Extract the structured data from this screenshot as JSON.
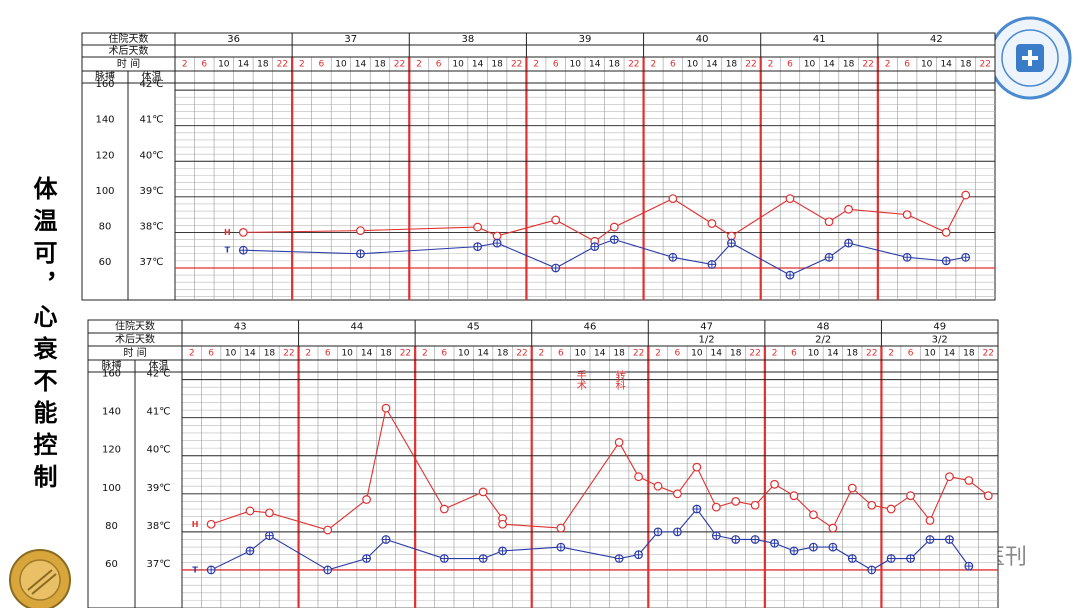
{
  "side_text": "体温可，心衰不能控制",
  "watermark": "PBI医刊",
  "chart_data": [
    {
      "type": "line",
      "header": {
        "hospital_day_label": "住院天数",
        "postop_day_label": "术后天数",
        "time_label": "时    间",
        "pulse_label": "脉搏",
        "temp_label": "体温"
      },
      "days": [
        36,
        37,
        38,
        39,
        40,
        41,
        42
      ],
      "postop_days": [
        null,
        null,
        null,
        null,
        null,
        null,
        null
      ],
      "times": [
        2,
        6,
        10,
        14,
        18,
        22
      ],
      "ylim": [
        42,
        164
      ],
      "yticks": [
        60,
        80,
        100,
        120,
        140,
        160
      ],
      "y2lim": [
        36.1,
        42.2
      ],
      "y2ticks": [
        {
          "value": 37,
          "label": "37℃"
        },
        {
          "value": 38,
          "label": "38℃"
        },
        {
          "value": 39,
          "label": "39℃"
        },
        {
          "value": 40,
          "label": "40℃"
        },
        {
          "value": 41,
          "label": "41℃"
        },
        {
          "value": 42,
          "label": "42℃"
        }
      ],
      "grid": true,
      "series": [
        {
          "name": "H",
          "color": "#e03030",
          "day": [
            36,
            37,
            38,
            38,
            39,
            39,
            39,
            40,
            40,
            40,
            41,
            41,
            41,
            42,
            42,
            42
          ],
          "time": [
            14,
            14,
            14,
            18,
            6,
            14,
            18,
            6,
            14,
            18,
            6,
            14,
            18,
            6,
            14,
            18
          ],
          "values": [
            80,
            81,
            83,
            78,
            87,
            75,
            83,
            99,
            85,
            78,
            99,
            86,
            93,
            90,
            80,
            101
          ]
        },
        {
          "name": "T",
          "color": "#2a3aa8",
          "axis": "y2",
          "day": [
            36,
            37,
            38,
            38,
            39,
            39,
            39,
            40,
            40,
            40,
            41,
            41,
            41,
            42,
            42,
            42
          ],
          "time": [
            14,
            14,
            14,
            18,
            6,
            14,
            18,
            6,
            14,
            18,
            6,
            14,
            18,
            6,
            14,
            18
          ],
          "values": [
            37.5,
            37.4,
            37.6,
            37.7,
            37.0,
            37.6,
            37.8,
            37.3,
            37.1,
            37.7,
            36.8,
            37.3,
            37.7,
            37.3,
            37.2,
            37.3
          ]
        }
      ]
    },
    {
      "type": "line",
      "header": {
        "hospital_day_label": "住院天数",
        "postop_day_label": "术后天数",
        "time_label": "时    间",
        "pulse_label": "脉搏",
        "temp_label": "体温"
      },
      "days": [
        43,
        44,
        45,
        46,
        47,
        48,
        49
      ],
      "postop_days": [
        null,
        null,
        null,
        null,
        "1/2",
        "2/2",
        "3/2"
      ],
      "times": [
        2,
        6,
        10,
        14,
        18,
        22
      ],
      "ylim": [
        40,
        164
      ],
      "yticks": [
        60,
        80,
        100,
        120,
        140,
        160
      ],
      "y2lim": [
        36.0,
        42.2
      ],
      "y2ticks": [
        {
          "value": 37,
          "label": "37℃"
        },
        {
          "value": 38,
          "label": "38℃"
        },
        {
          "value": 39,
          "label": "39℃"
        },
        {
          "value": 40,
          "label": "40℃"
        },
        {
          "value": 41,
          "label": "41℃"
        },
        {
          "value": 42,
          "label": "42℃"
        }
      ],
      "grid": true,
      "annotations": [
        "手术",
        "转科"
      ],
      "series": [
        {
          "name": "H",
          "color": "#e03030",
          "day": [
            43,
            43,
            43,
            44,
            44,
            44,
            45,
            45,
            45,
            45,
            46,
            46,
            46,
            47,
            47,
            47,
            47,
            47,
            47,
            48,
            48,
            48,
            48,
            48,
            48,
            49,
            49,
            49,
            49,
            49,
            49
          ],
          "time": [
            6,
            14,
            18,
            6,
            14,
            18,
            6,
            14,
            18,
            18,
            6,
            18,
            22,
            2,
            6,
            10,
            14,
            18,
            22,
            2,
            6,
            10,
            14,
            18,
            22,
            2,
            6,
            10,
            14,
            18,
            22
          ],
          "values": [
            84,
            91,
            90,
            81,
            97,
            145,
            92,
            101,
            87,
            84,
            82,
            127,
            109,
            104,
            100,
            114,
            93,
            96,
            94,
            105,
            99,
            89,
            82,
            103,
            94,
            92,
            99,
            86,
            109,
            107,
            99
          ]
        },
        {
          "name": "T",
          "color": "#2a3aa8",
          "axis": "y2",
          "day": [
            43,
            43,
            43,
            44,
            44,
            44,
            45,
            45,
            45,
            46,
            46,
            46,
            47,
            47,
            47,
            47,
            47,
            47,
            48,
            48,
            48,
            48,
            48,
            48,
            49,
            49,
            49,
            49,
            49
          ],
          "time": [
            6,
            14,
            18,
            6,
            14,
            18,
            6,
            14,
            18,
            6,
            18,
            22,
            2,
            6,
            10,
            14,
            18,
            22,
            2,
            6,
            10,
            14,
            18,
            22,
            2,
            6,
            10,
            14,
            18
          ],
          "values": [
            37.0,
            37.5,
            37.9,
            37.0,
            37.3,
            37.8,
            37.3,
            37.3,
            37.5,
            37.6,
            37.3,
            37.4,
            38.0,
            38.0,
            38.6,
            37.9,
            37.8,
            37.8,
            37.7,
            37.5,
            37.6,
            37.6,
            37.3,
            37.0,
            37.3,
            37.3,
            37.8,
            37.8,
            37.1
          ]
        }
      ]
    }
  ]
}
